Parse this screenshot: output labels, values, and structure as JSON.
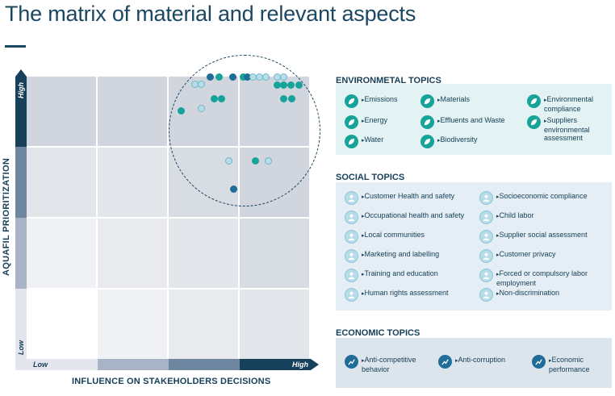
{
  "title": "The matrix of material and relevant aspects",
  "matrix": {
    "y_axis_title": "AQUAFIL PRIORITIZATION",
    "x_axis_title": "INFLUENCE ON STAKEHOLDERS DECISIONS",
    "y_high": "High",
    "y_low": "Low",
    "x_low": "Low",
    "x_high": "High"
  },
  "environmental": {
    "heading": "ENVIRONMETAL TOPICS",
    "items": [
      "Emissions",
      "Energy",
      "Water",
      "Materials",
      "Effluents and Waste",
      "Biodiversity",
      "Environmental compliance",
      "Suppliers environmental assessment"
    ]
  },
  "social": {
    "heading": "SOCIAL TOPICS",
    "items": [
      "Customer Health and safety",
      "Occupational health and safety",
      "Local communities",
      "Marketing and labelling",
      "Training and education",
      "Human rights assessment",
      "Socioeconomic compliance",
      "Child labor",
      "Supplier social assessment",
      "Customer privacy",
      "Forced or compulsory labor employment",
      "Non-discrimination"
    ]
  },
  "economic": {
    "heading": "ECONOMIC TOPICS",
    "items": [
      "Anti-competitive behavior",
      "Anti-corruption",
      "Economic performance"
    ]
  },
  "colors": {
    "environmental": "#16a399",
    "social": "#b7dde9",
    "economic": "#1f6d98",
    "panel_env": "#e3f2f2",
    "panel_social": "#e5eef4",
    "panel_eco": "#dde5ec"
  }
}
